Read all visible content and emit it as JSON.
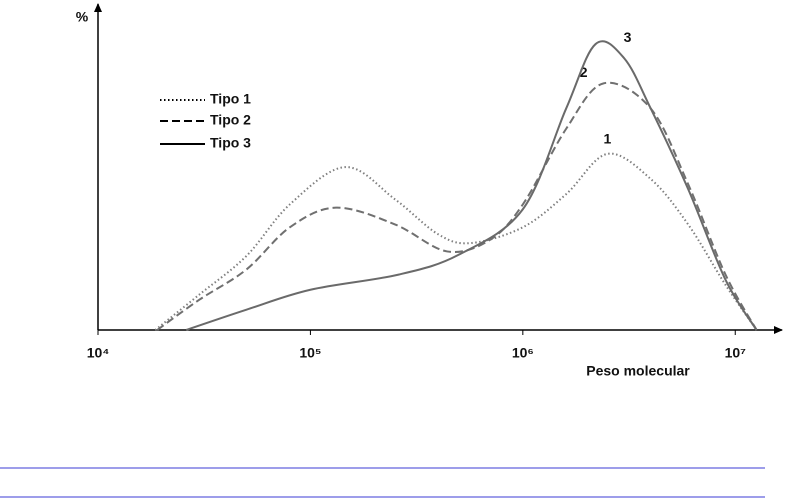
{
  "chart_data": {
    "type": "line",
    "y_label": "%",
    "x_label": "Peso molecular",
    "log_x": true,
    "legend": "upper left",
    "grid": false,
    "xlim": [
      10000,
      16600000
    ],
    "xticks": [
      {
        "value": 10000,
        "label": "10⁴"
      },
      {
        "value": 100000,
        "label": "10⁵"
      },
      {
        "value": 1000000,
        "label": "10⁶"
      },
      {
        "value": 10000000,
        "label": "10⁷"
      }
    ],
    "ylim": [
      0,
      100
    ],
    "series": [
      {
        "name": "Tipo 1",
        "color": "#808080",
        "style": "dotted",
        "annotation": "1",
        "x": [
          18600,
          30000,
          50000,
          80000,
          146000,
          250000,
          400000,
          570000,
          1000000,
          1600000,
          2500000,
          4000000,
          6000000,
          9000000,
          12600000
        ],
        "values": [
          0,
          11,
          23,
          39,
          50.6,
          40.6,
          29.7,
          27,
          31.9,
          42.2,
          54.7,
          46.9,
          32.8,
          14,
          0
        ]
      },
      {
        "name": "Tipo 2",
        "color": "#707070",
        "style": "dashed",
        "annotation": "2",
        "x": [
          19000,
          30000,
          50000,
          80000,
          132000,
          250000,
          440000,
          700000,
          1000000,
          1600000,
          2400000,
          4000000,
          6000000,
          9000000,
          12600000
        ],
        "values": [
          0,
          9.4,
          18.8,
          31.9,
          38,
          32.8,
          24.4,
          28,
          39,
          62.5,
          76.6,
          68.8,
          45.3,
          17.2,
          0
        ]
      },
      {
        "name": "Tipo 3",
        "color": "#6a6a6a",
        "style": "solid",
        "annotation": "3",
        "x": [
          26000,
          50000,
          100000,
          260000,
          500000,
          1000000,
          1600000,
          2200000,
          3000000,
          4000000,
          6000000,
          9000000,
          12600000
        ],
        "values": [
          0,
          6.3,
          12.5,
          17.2,
          23.4,
          37.5,
          68.8,
          88.8,
          84.4,
          68.8,
          43.8,
          15.6,
          0
        ]
      }
    ]
  }
}
